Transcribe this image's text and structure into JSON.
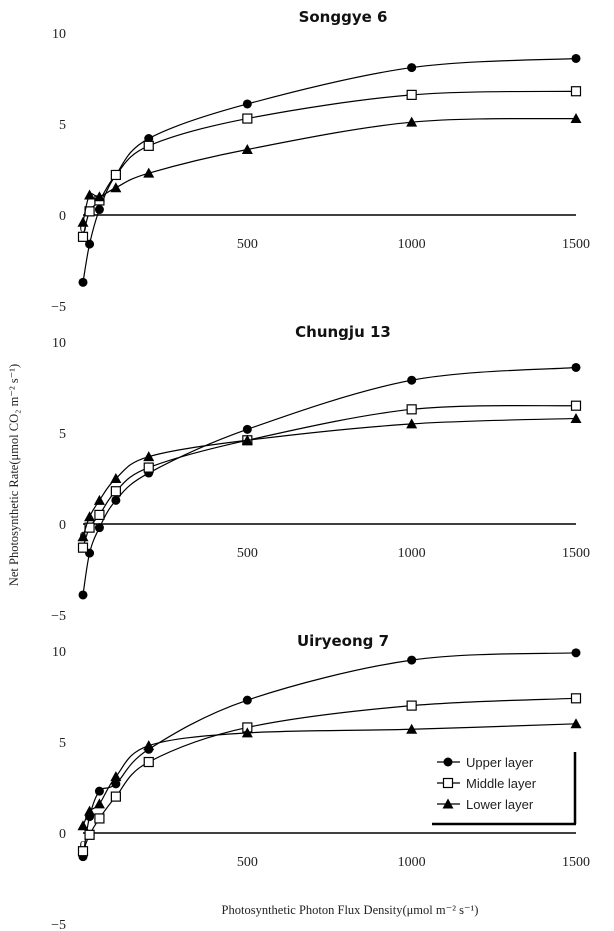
{
  "figure": {
    "ylabel": "Net Photosynthetic Rate(μmol CO₂ m⁻² s⁻¹)",
    "xlabel": "Photosynthetic Photon Flux Density(μmol m⁻² s⁻¹)"
  },
  "legend": [
    {
      "name": "Upper layer",
      "marker": "circle"
    },
    {
      "name": "Middle layer",
      "marker": "square"
    },
    {
      "name": "Lower layer",
      "marker": "triangle"
    }
  ],
  "colors": {
    "ink": "#000000",
    "background": "#ffffff"
  },
  "chart_data": [
    {
      "type": "line",
      "title": "Songgye 6",
      "xlabel": "",
      "ylabel": "",
      "xlim": [
        0,
        1500
      ],
      "ylim": [
        -5,
        10
      ],
      "x_ticks": [
        500,
        1000,
        1500
      ],
      "y_ticks": [
        -5,
        0,
        5,
        10
      ],
      "x": [
        0,
        20,
        50,
        100,
        200,
        500,
        1000,
        1500
      ],
      "series": [
        {
          "name": "Upper layer",
          "marker": "circle",
          "values": [
            -3.7,
            -1.6,
            0.3,
            2.2,
            4.2,
            6.1,
            8.1,
            8.6
          ]
        },
        {
          "name": "Middle layer",
          "marker": "square",
          "values": [
            -1.2,
            0.2,
            0.8,
            2.2,
            3.8,
            5.3,
            6.6,
            6.8
          ]
        },
        {
          "name": "Lower layer",
          "marker": "triangle",
          "values": [
            -0.4,
            1.1,
            1.0,
            1.5,
            2.3,
            3.6,
            5.1,
            5.3
          ]
        }
      ]
    },
    {
      "type": "line",
      "title": "Chungju 13",
      "xlabel": "",
      "ylabel": "",
      "xlim": [
        0,
        1500
      ],
      "ylim": [
        -5,
        10
      ],
      "x_ticks": [
        500,
        1000,
        1500
      ],
      "y_ticks": [
        -5,
        0,
        5,
        10
      ],
      "x": [
        0,
        20,
        50,
        100,
        200,
        500,
        1000,
        1500
      ],
      "series": [
        {
          "name": "Upper layer",
          "marker": "circle",
          "values": [
            -3.9,
            -1.6,
            -0.2,
            1.3,
            2.8,
            5.2,
            7.9,
            8.6
          ]
        },
        {
          "name": "Middle layer",
          "marker": "square",
          "values": [
            -1.3,
            -0.2,
            0.5,
            1.8,
            3.1,
            4.6,
            6.3,
            6.5
          ]
        },
        {
          "name": "Lower layer",
          "marker": "triangle",
          "values": [
            -0.7,
            0.4,
            1.3,
            2.5,
            3.7,
            4.6,
            5.5,
            5.8
          ]
        }
      ]
    },
    {
      "type": "line",
      "title": "Uiryeong 7",
      "xlabel": "",
      "ylabel": "",
      "xlim": [
        0,
        1500
      ],
      "ylim": [
        -5,
        10
      ],
      "x_ticks": [
        500,
        1000,
        1500
      ],
      "y_ticks": [
        -5,
        0,
        5,
        10
      ],
      "x": [
        0,
        20,
        50,
        100,
        200,
        500,
        1000,
        1500
      ],
      "series": [
        {
          "name": "Upper layer",
          "marker": "circle",
          "values": [
            -1.3,
            0.9,
            2.3,
            2.7,
            4.6,
            7.3,
            9.5,
            9.9
          ]
        },
        {
          "name": "Middle layer",
          "marker": "square",
          "values": [
            -1.0,
            -0.1,
            0.8,
            2.0,
            3.9,
            5.8,
            7.0,
            7.4
          ]
        },
        {
          "name": "Lower layer",
          "marker": "triangle",
          "values": [
            0.4,
            1.2,
            1.6,
            3.1,
            4.8,
            5.5,
            5.7,
            6.0
          ]
        }
      ]
    }
  ]
}
